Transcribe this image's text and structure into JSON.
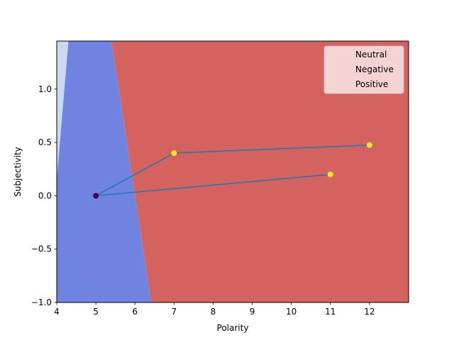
{
  "chart_data": {
    "type": "scatter",
    "title": "",
    "xlabel": "Polarity",
    "ylabel": "Subjectivity",
    "xlim": [
      4,
      13
    ],
    "ylim": [
      -1.0,
      1.45
    ],
    "xticks": [
      4,
      5,
      6,
      7,
      8,
      9,
      10,
      11,
      12
    ],
    "xtick_labels": [
      "4",
      "5",
      "6",
      "7",
      "8",
      "9",
      "10",
      "11",
      "12"
    ],
    "yticks": [
      -1.0,
      -0.5,
      0.0,
      0.5,
      1.0
    ],
    "ytick_labels": [
      "−1.0",
      "−0.5",
      "0.0",
      "0.5",
      "1.0"
    ],
    "grid": false,
    "legend": {
      "placement": "top-right",
      "entries": [
        "Neutral",
        "Negative",
        "Positive"
      ]
    },
    "decision_regions": [
      {
        "class": "light",
        "color": "#c9d9f0",
        "polygon": [
          [
            4.0,
            1.45
          ],
          [
            4.3,
            1.45
          ],
          [
            4.0,
            0.15
          ]
        ]
      },
      {
        "class": "blue",
        "color": "#7083e0",
        "polygon": [
          [
            4.0,
            0.15
          ],
          [
            4.3,
            1.45
          ],
          [
            5.4,
            1.45
          ],
          [
            6.42,
            -1.0
          ],
          [
            4.0,
            -1.0
          ]
        ]
      },
      {
        "class": "red",
        "color": "#d4625e",
        "polygon": [
          [
            5.4,
            1.45
          ],
          [
            13.0,
            1.45
          ],
          [
            13.0,
            -1.0
          ],
          [
            6.42,
            -1.0
          ]
        ]
      }
    ],
    "points": [
      {
        "x": 5,
        "y": 0.0,
        "color": "#440154"
      },
      {
        "x": 7,
        "y": 0.4,
        "color": "#fde725"
      },
      {
        "x": 11,
        "y": 0.2,
        "color": "#fde725"
      },
      {
        "x": 12,
        "y": 0.475,
        "color": "#fde725"
      }
    ],
    "line": {
      "color": "#1f77b4",
      "path": [
        [
          12,
          0.475
        ],
        [
          7,
          0.4
        ],
        [
          5,
          0.0
        ],
        [
          11,
          0.2
        ],
        [
          5,
          0.0
        ]
      ]
    }
  }
}
